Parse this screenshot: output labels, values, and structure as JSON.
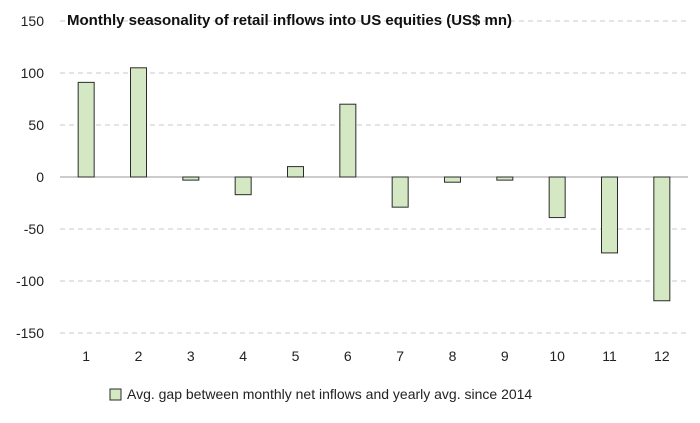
{
  "chart_data": {
    "type": "bar",
    "title": "Monthly seasonality of retail inflows into US equities (US$ mn)",
    "categories": [
      "1",
      "2",
      "3",
      "4",
      "5",
      "6",
      "7",
      "8",
      "9",
      "10",
      "11",
      "12"
    ],
    "series": [
      {
        "name": "Avg. gap between monthly net inflows and yearly avg. since 2014",
        "values": [
          91,
          105,
          -3,
          -17,
          10,
          70,
          -29,
          -5,
          -3,
          -39,
          -73,
          -119
        ]
      }
    ],
    "yticks": [
      "150",
      "100",
      "50",
      "0",
      "-50",
      "-100",
      "-150"
    ],
    "ylim": [
      -150,
      150
    ],
    "grid": true,
    "legend_position": "bottom",
    "colors": {
      "bar_fill": "#d5e8c4",
      "bar_stroke": "#2b2b2b",
      "grid": "#c8c8c8",
      "axis": "#9a9a9a"
    }
  }
}
